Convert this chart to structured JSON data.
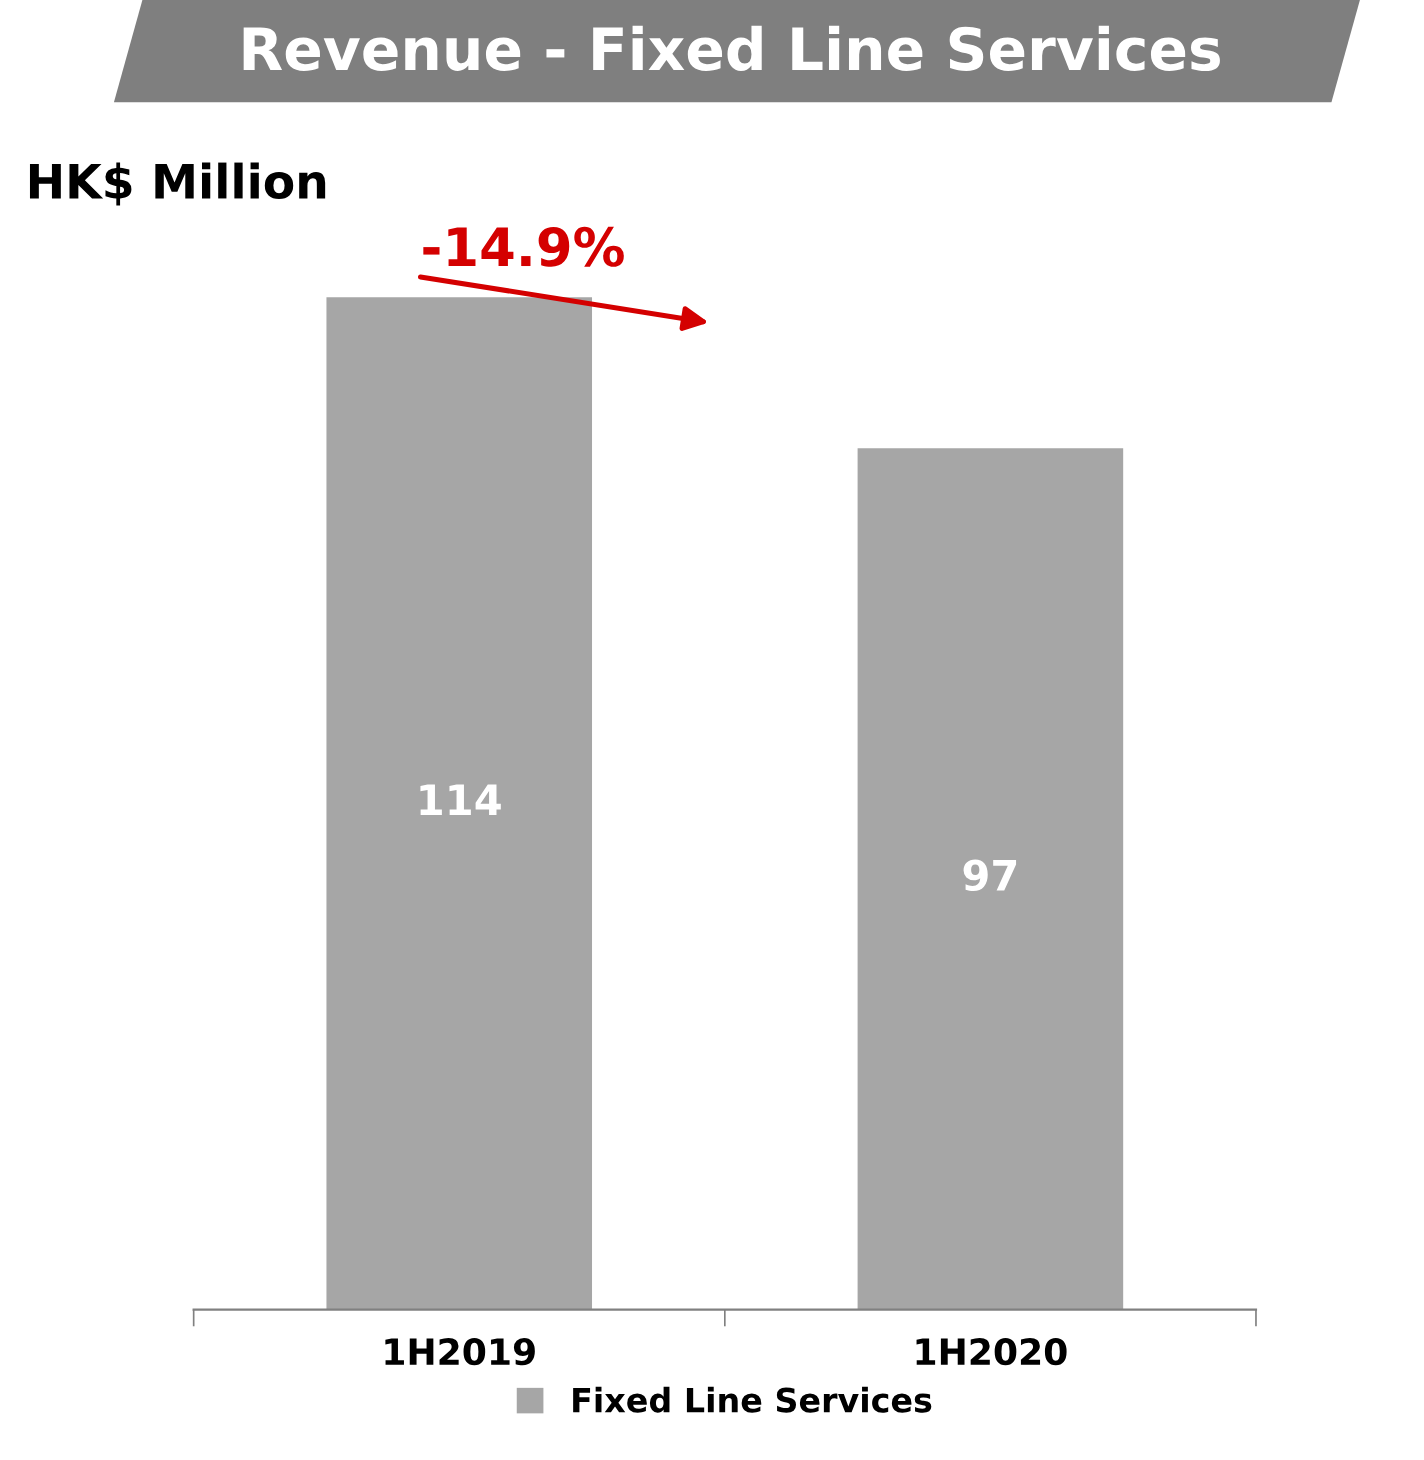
{
  "chart_data": {
    "type": "bar",
    "title": "Revenue - Fixed Line Services",
    "ylabel": "HK$ Million",
    "categories": [
      "1H2019",
      "1H2020"
    ],
    "series": [
      {
        "name": "Fixed Line Services",
        "color": "#a6a6a6",
        "values": [
          114,
          97
        ]
      }
    ],
    "data_labels": true,
    "legend": "bottom",
    "grid": false,
    "annotations": [
      "-14.9%"
    ]
  }
}
